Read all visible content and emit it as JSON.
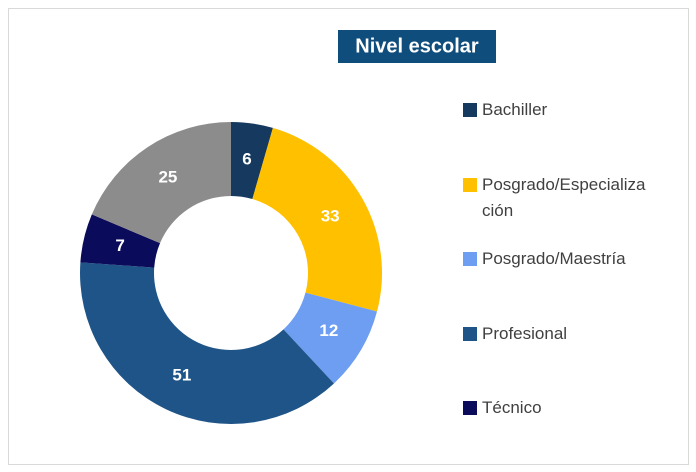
{
  "chart_data": {
    "type": "donut",
    "title": "Nivel escolar",
    "categories": [
      "Bachiller",
      "Posgrado/Especialización",
      "Posgrado/Maestría",
      "Profesional",
      "Técnico",
      null
    ],
    "values": [
      6,
      33,
      12,
      51,
      7,
      25
    ],
    "colors": [
      "#163a5f",
      "#ffc000",
      "#6d9ef2",
      "#1f5488",
      "#0b0b5c",
      "#8c8c8c"
    ]
  }
}
